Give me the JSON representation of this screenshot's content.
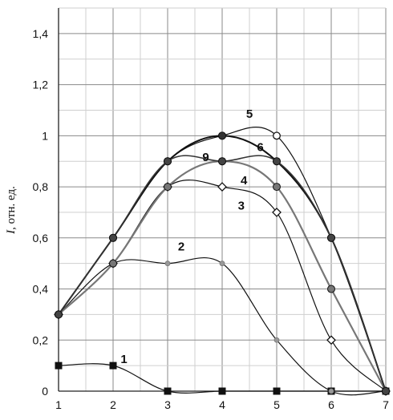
{
  "chart_data": {
    "type": "line",
    "title": "",
    "xlabel": "",
    "ylabel_italic": "I",
    "ylabel_rest": ", отн. ед.",
    "xlim": [
      1,
      7
    ],
    "ylim": [
      0,
      1.5
    ],
    "grid": true,
    "x_ticks": [
      "1",
      "2",
      "3",
      "4",
      "5",
      "6",
      "7"
    ],
    "y_ticks": [
      {
        "v": 0,
        "label": "0"
      },
      {
        "v": 0.2,
        "label": "0,2"
      },
      {
        "v": 0.4,
        "label": "0,4"
      },
      {
        "v": 0.6,
        "label": "0,6"
      },
      {
        "v": 0.8,
        "label": "0,8"
      },
      {
        "v": 1.0,
        "label": "1"
      },
      {
        "v": 1.2,
        "label": "1,2"
      },
      {
        "v": 1.4,
        "label": "1,4"
      }
    ],
    "series": [
      {
        "name": "1",
        "color": "#111111",
        "width": 1.2,
        "marker": "square",
        "marker_fill": "#111111",
        "x": [
          1,
          2,
          3,
          4,
          5,
          6,
          7
        ],
        "y": [
          0.1,
          0.1,
          0,
          0,
          0,
          0,
          0
        ],
        "label_at": [
          2.2,
          0.11
        ]
      },
      {
        "name": "2",
        "color": "#111111",
        "width": 1.2,
        "marker": "circle-small",
        "marker_fill": "#999999",
        "x": [
          1,
          2,
          3,
          4,
          5,
          6,
          7
        ],
        "y": [
          0.3,
          0.5,
          0.5,
          0.5,
          0.2,
          0,
          0
        ],
        "label_at": [
          3.25,
          0.55
        ]
      },
      {
        "name": "3",
        "color": "#111111",
        "width": 1.2,
        "marker": "diamond",
        "marker_fill": "#ffffff",
        "x": [
          1,
          2,
          3,
          4,
          5,
          6,
          7
        ],
        "y": [
          0.3,
          0.5,
          0.8,
          0.8,
          0.7,
          0.2,
          0
        ],
        "label_at": [
          4.35,
          0.71
        ]
      },
      {
        "name": "4",
        "color": "#777777",
        "width": 2.2,
        "marker": "circle",
        "marker_fill": "#777777",
        "x": [
          1,
          2,
          3,
          4,
          5,
          6,
          7
        ],
        "y": [
          0.3,
          0.5,
          0.8,
          0.9,
          0.8,
          0.4,
          0
        ],
        "label_at": [
          4.4,
          0.81
        ]
      },
      {
        "name": "5",
        "color": "#111111",
        "width": 1.2,
        "marker": "circle-open",
        "marker_fill": "#ffffff",
        "x": [
          1,
          2,
          3,
          4,
          5,
          6,
          7
        ],
        "y": [
          0.3,
          0.6,
          0.9,
          1.0,
          1.0,
          0.6,
          0
        ],
        "label_at": [
          4.5,
          1.07
        ]
      },
      {
        "name": "6",
        "color": "#111111",
        "width": 2.0,
        "marker": "circle",
        "marker_fill": "#333333",
        "x": [
          1,
          2,
          3,
          4,
          5,
          6,
          7
        ],
        "y": [
          0.3,
          0.6,
          0.9,
          1.0,
          0.9,
          0.6,
          0
        ],
        "label_at": [
          4.7,
          0.94
        ]
      },
      {
        "name": "9",
        "color": "#333333",
        "width": 1.6,
        "marker": "circle",
        "marker_fill": "#444444",
        "x": [
          1,
          2,
          3,
          4,
          5,
          6,
          7
        ],
        "y": [
          0.3,
          0.6,
          0.9,
          0.9,
          0.9,
          0.6,
          0
        ],
        "label_at": [
          3.7,
          0.9
        ]
      }
    ]
  }
}
